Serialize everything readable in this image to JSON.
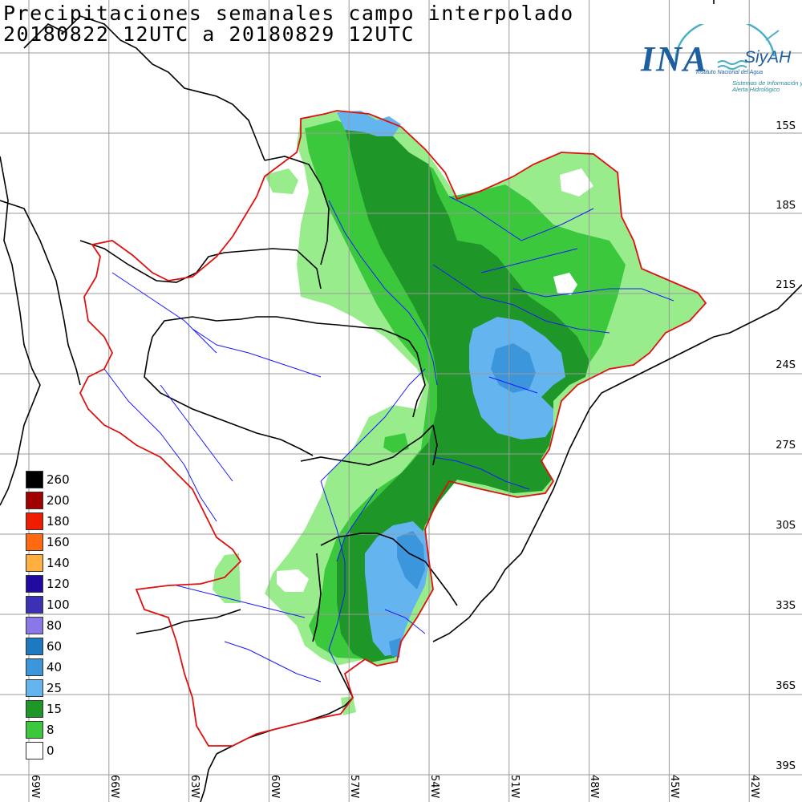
{
  "title": {
    "line1": "Precipitaciones semanales campo interpolado",
    "line2": "20180822 12UTC a 20180829 12UTC"
  },
  "logo": {
    "name": "INA",
    "product": "SiyAH",
    "institute": "Instituto Nacional del Agua",
    "system": "Sistemas de Información y Alerta Hidrológico"
  },
  "latitude_labels": [
    "15S",
    "18S",
    "21S",
    "24S",
    "27S",
    "30S",
    "33S",
    "36S",
    "39S"
  ],
  "longitude_labels": [
    "69W",
    "66W",
    "63W",
    "60W",
    "57W",
    "54W",
    "51W",
    "48W",
    "45W",
    "42W"
  ],
  "legend": {
    "unit_note": "",
    "classes": [
      {
        "value": "260",
        "color": "#000000"
      },
      {
        "value": "200",
        "color": "#a00000"
      },
      {
        "value": "180",
        "color": "#f01c00"
      },
      {
        "value": "160",
        "color": "#ff6a10"
      },
      {
        "value": "140",
        "color": "#ffb040"
      },
      {
        "value": "120",
        "color": "#200aa0"
      },
      {
        "value": "100",
        "color": "#3c30b4"
      },
      {
        "value": "80",
        "color": "#8a78e8"
      },
      {
        "value": "60",
        "color": "#1e7ac0"
      },
      {
        "value": "40",
        "color": "#3c96dc"
      },
      {
        "value": "25",
        "color": "#64b4f0"
      },
      {
        "value": "15",
        "color": "#1e9628"
      },
      {
        "value": "8",
        "color": "#3cc83c"
      },
      {
        "value": "0",
        "color": "#ffffff"
      }
    ]
  },
  "colors": {
    "basin_outline": "#e01010",
    "rivers": "#1a1aff",
    "borders": "#000000",
    "grid": "#9a9a9a",
    "light_green": "#98ec8c"
  }
}
